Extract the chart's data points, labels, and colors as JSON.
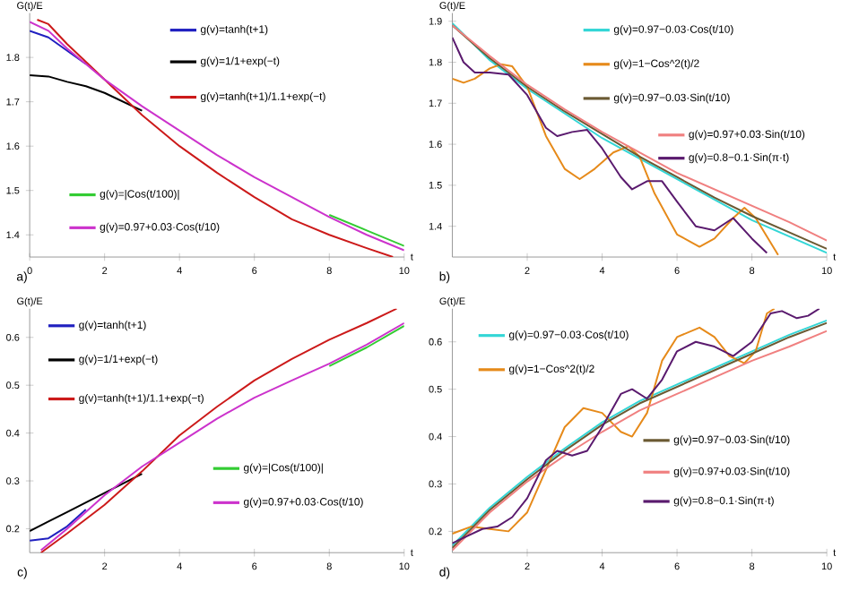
{
  "chart_data": [
    {
      "type": "line",
      "xlabel": "t",
      "ylabel": "G(t)/E",
      "annotations": [
        "a)"
      ],
      "legend": "top",
      "xlim": [
        0,
        10
      ],
      "ylim": [
        1.35,
        1.9
      ],
      "xticks": [
        0,
        2,
        4,
        6,
        8,
        10
      ],
      "yticks": [
        1.4,
        1.5,
        1.6,
        1.7,
        1.8
      ],
      "series": [
        {
          "name": "g(v)=tanh(t+1)",
          "color": "#2020c0",
          "x": [
            0,
            0.5,
            1,
            1.5
          ],
          "values": [
            1.86,
            1.845,
            1.815,
            1.785
          ]
        },
        {
          "name": "g(v)=1/1+exp(−t)",
          "color": "#000000",
          "x": [
            0,
            0.5,
            1,
            1.5,
            2,
            3
          ],
          "values": [
            1.76,
            1.757,
            1.745,
            1.735,
            1.72,
            1.68
          ]
        },
        {
          "name": "g(v)=tanh(t+1)/1.1+exp(−t)",
          "color": "#cc1a1a",
          "x": [
            0.2,
            0.5,
            1,
            1.5,
            2,
            3,
            4,
            5,
            6,
            7,
            8,
            9,
            9.7
          ],
          "values": [
            1.885,
            1.875,
            1.83,
            1.79,
            1.75,
            1.67,
            1.6,
            1.54,
            1.485,
            1.435,
            1.4,
            1.37,
            1.35
          ]
        },
        {
          "name": "g(v)=|Cos(t/100)|",
          "color": "#33cc33",
          "x": [
            8,
            9,
            10
          ],
          "values": [
            1.445,
            1.41,
            1.375
          ]
        },
        {
          "name": "g(v)=0.97+0.03·Cos(t/10)",
          "color": "#cc33cc",
          "x": [
            0,
            0.5,
            1,
            1.5,
            2,
            3,
            4,
            5,
            6,
            7,
            8,
            9,
            10
          ],
          "values": [
            1.88,
            1.86,
            1.82,
            1.785,
            1.75,
            1.69,
            1.635,
            1.58,
            1.53,
            1.485,
            1.44,
            1.4,
            1.365
          ]
        }
      ]
    },
    {
      "type": "line",
      "xlabel": "t",
      "ylabel": "G(t)/E",
      "annotations": [
        "b)"
      ],
      "legend": "top right",
      "xlim": [
        0,
        10
      ],
      "ylim": [
        1.325,
        1.92
      ],
      "xticks": [
        2,
        4,
        6,
        8,
        10
      ],
      "yticks": [
        1.4,
        1.5,
        1.6,
        1.7,
        1.8,
        1.9
      ],
      "series": [
        {
          "name": "g(v)=0.97−0.03·Cos(t/10)",
          "color": "#33d6d6",
          "x": [
            0,
            1,
            2,
            3,
            4,
            5,
            6,
            7,
            8,
            9,
            10
          ],
          "values": [
            1.895,
            1.805,
            1.735,
            1.675,
            1.615,
            1.565,
            1.515,
            1.465,
            1.415,
            1.375,
            1.335
          ]
        },
        {
          "name": "g(v)=1−Cos^2(t)/2",
          "color": "#e68a1a",
          "x": [
            0,
            0.3,
            0.6,
            1,
            1.3,
            1.6,
            2,
            2.5,
            3,
            3.4,
            3.8,
            4.3,
            4.7,
            5,
            5.4,
            6,
            6.6,
            7,
            7.5,
            7.8,
            8.1,
            8.5,
            8.7
          ],
          "values": [
            1.76,
            1.75,
            1.76,
            1.785,
            1.795,
            1.79,
            1.74,
            1.62,
            1.54,
            1.515,
            1.54,
            1.58,
            1.595,
            1.57,
            1.48,
            1.38,
            1.35,
            1.37,
            1.42,
            1.445,
            1.42,
            1.36,
            1.33
          ]
        },
        {
          "name": "g(v)=0.97−0.03·Sin(t/10)",
          "color": "#6b5a33",
          "x": [
            0,
            1,
            2,
            3,
            4,
            5,
            6,
            7,
            8,
            9,
            10
          ],
          "values": [
            1.89,
            1.81,
            1.74,
            1.68,
            1.625,
            1.57,
            1.52,
            1.47,
            1.425,
            1.385,
            1.345
          ]
        },
        {
          "name": "g(v)=0.97+0.03·Sin(t/10)",
          "color": "#f08080",
          "x": [
            0,
            1,
            2,
            3,
            4,
            5,
            6,
            7,
            8,
            9,
            10
          ],
          "values": [
            1.89,
            1.815,
            1.745,
            1.685,
            1.63,
            1.58,
            1.53,
            1.49,
            1.45,
            1.41,
            1.365
          ]
        },
        {
          "name": "g(v)=0.8−0.1·Sin(π·t)",
          "color": "#5a1a6e",
          "x": [
            0,
            0.3,
            0.6,
            1,
            1.5,
            2,
            2.5,
            2.8,
            3.2,
            3.6,
            4,
            4.5,
            4.8,
            5.2,
            5.6,
            6,
            6.5,
            7,
            7.5,
            8,
            8.4
          ],
          "values": [
            1.86,
            1.8,
            1.775,
            1.775,
            1.77,
            1.72,
            1.64,
            1.62,
            1.63,
            1.635,
            1.59,
            1.52,
            1.49,
            1.51,
            1.51,
            1.46,
            1.4,
            1.39,
            1.42,
            1.37,
            1.335
          ]
        }
      ]
    },
    {
      "type": "line",
      "xlabel": "t",
      "ylabel": "G(t)/E",
      "annotations": [
        "c)"
      ],
      "legend": "top left",
      "xlim": [
        0,
        10
      ],
      "ylim": [
        0.15,
        0.66
      ],
      "xticks": [
        2,
        4,
        6,
        8,
        10
      ],
      "yticks": [
        0.2,
        0.3,
        0.4,
        0.5,
        0.6
      ],
      "series": [
        {
          "name": "g(v)=tanh(t+1)",
          "color": "#2020c0",
          "x": [
            0,
            0.5,
            1,
            1.5
          ],
          "values": [
            0.175,
            0.18,
            0.205,
            0.24
          ]
        },
        {
          "name": "g(v)=1/1+exp(−t)",
          "color": "#000000",
          "x": [
            0,
            0.5,
            1,
            1.5,
            2,
            3
          ],
          "values": [
            0.195,
            0.215,
            0.235,
            0.255,
            0.275,
            0.315
          ]
        },
        {
          "name": "g(v)=tanh(t+1)/1.1+exp(−t)",
          "color": "#cc1a1a",
          "x": [
            0.3,
            1,
            2,
            3,
            4,
            5,
            6,
            7,
            8,
            9,
            9.8
          ],
          "values": [
            0.15,
            0.19,
            0.25,
            0.32,
            0.395,
            0.455,
            0.51,
            0.555,
            0.595,
            0.63,
            0.66
          ]
        },
        {
          "name": "g(v)=|Cos(t/100)|",
          "color": "#33cc33",
          "x": [
            8,
            9,
            10
          ],
          "values": [
            0.54,
            0.579,
            0.624
          ]
        },
        {
          "name": "g(v)=0.97+0.03·Cos(t/10)",
          "color": "#cc33cc",
          "x": [
            0.3,
            1,
            1.5,
            2,
            3,
            4,
            5,
            6,
            7,
            8,
            9,
            10
          ],
          "values": [
            0.155,
            0.2,
            0.235,
            0.27,
            0.33,
            0.38,
            0.43,
            0.474,
            0.51,
            0.545,
            0.585,
            0.63
          ]
        }
      ]
    },
    {
      "type": "line",
      "xlabel": "t",
      "ylabel": "G(t)/E",
      "annotations": [
        "d)"
      ],
      "legend": "top left",
      "xlim": [
        0,
        10
      ],
      "ylim": [
        0.155,
        0.67
      ],
      "xticks": [
        2,
        4,
        6,
        8,
        10
      ],
      "yticks": [
        0.2,
        0.3,
        0.4,
        0.5,
        0.6
      ],
      "series": [
        {
          "name": "g(v)=0.97−0.03·Cos(t/10)",
          "color": "#33d6d6",
          "x": [
            0,
            0.5,
            1,
            2,
            3,
            4,
            5,
            6,
            7,
            8,
            9,
            10
          ],
          "values": [
            0.17,
            0.21,
            0.25,
            0.315,
            0.375,
            0.43,
            0.475,
            0.51,
            0.545,
            0.58,
            0.615,
            0.645
          ]
        },
        {
          "name": "g(v)=1−Cos^2(t)/2",
          "color": "#e68a1a",
          "x": [
            0,
            0.5,
            1,
            1.5,
            2,
            2.5,
            3,
            3.5,
            4,
            4.5,
            4.8,
            5.2,
            5.6,
            6,
            6.6,
            7,
            7.4,
            7.8,
            8.1,
            8.4,
            8.6
          ],
          "values": [
            0.195,
            0.21,
            0.205,
            0.2,
            0.24,
            0.33,
            0.42,
            0.46,
            0.45,
            0.41,
            0.4,
            0.45,
            0.56,
            0.61,
            0.63,
            0.61,
            0.57,
            0.555,
            0.58,
            0.66,
            0.67
          ]
        },
        {
          "name": "g(v)=0.97−0.03·Sin(t/10)",
          "color": "#6b5a33",
          "x": [
            0,
            0.5,
            1,
            2,
            3,
            4,
            5,
            6,
            7,
            8,
            9,
            10
          ],
          "values": [
            0.165,
            0.205,
            0.245,
            0.31,
            0.37,
            0.425,
            0.47,
            0.505,
            0.54,
            0.575,
            0.61,
            0.64
          ]
        },
        {
          "name": "g(v)=0.97+0.03·Sin(t/10)",
          "color": "#f08080",
          "x": [
            0,
            0.5,
            1,
            2,
            3,
            4,
            5,
            6,
            7,
            8,
            9,
            10
          ],
          "values": [
            0.16,
            0.2,
            0.24,
            0.305,
            0.36,
            0.41,
            0.455,
            0.49,
            0.525,
            0.56,
            0.59,
            0.623
          ]
        },
        {
          "name": "g(v)=0.8−0.1·Sin(π·t)",
          "color": "#5a1a6e",
          "x": [
            0,
            0.4,
            0.8,
            1.2,
            1.6,
            2,
            2.5,
            2.8,
            3.2,
            3.6,
            4,
            4.5,
            4.8,
            5.2,
            5.6,
            6,
            6.5,
            7,
            7.5,
            8,
            8.5,
            8.8,
            9.2,
            9.5,
            9.8
          ],
          "values": [
            0.175,
            0.19,
            0.205,
            0.21,
            0.23,
            0.27,
            0.35,
            0.37,
            0.36,
            0.37,
            0.42,
            0.49,
            0.5,
            0.48,
            0.52,
            0.58,
            0.6,
            0.59,
            0.57,
            0.6,
            0.66,
            0.665,
            0.65,
            0.655,
            0.67
          ]
        }
      ]
    }
  ]
}
